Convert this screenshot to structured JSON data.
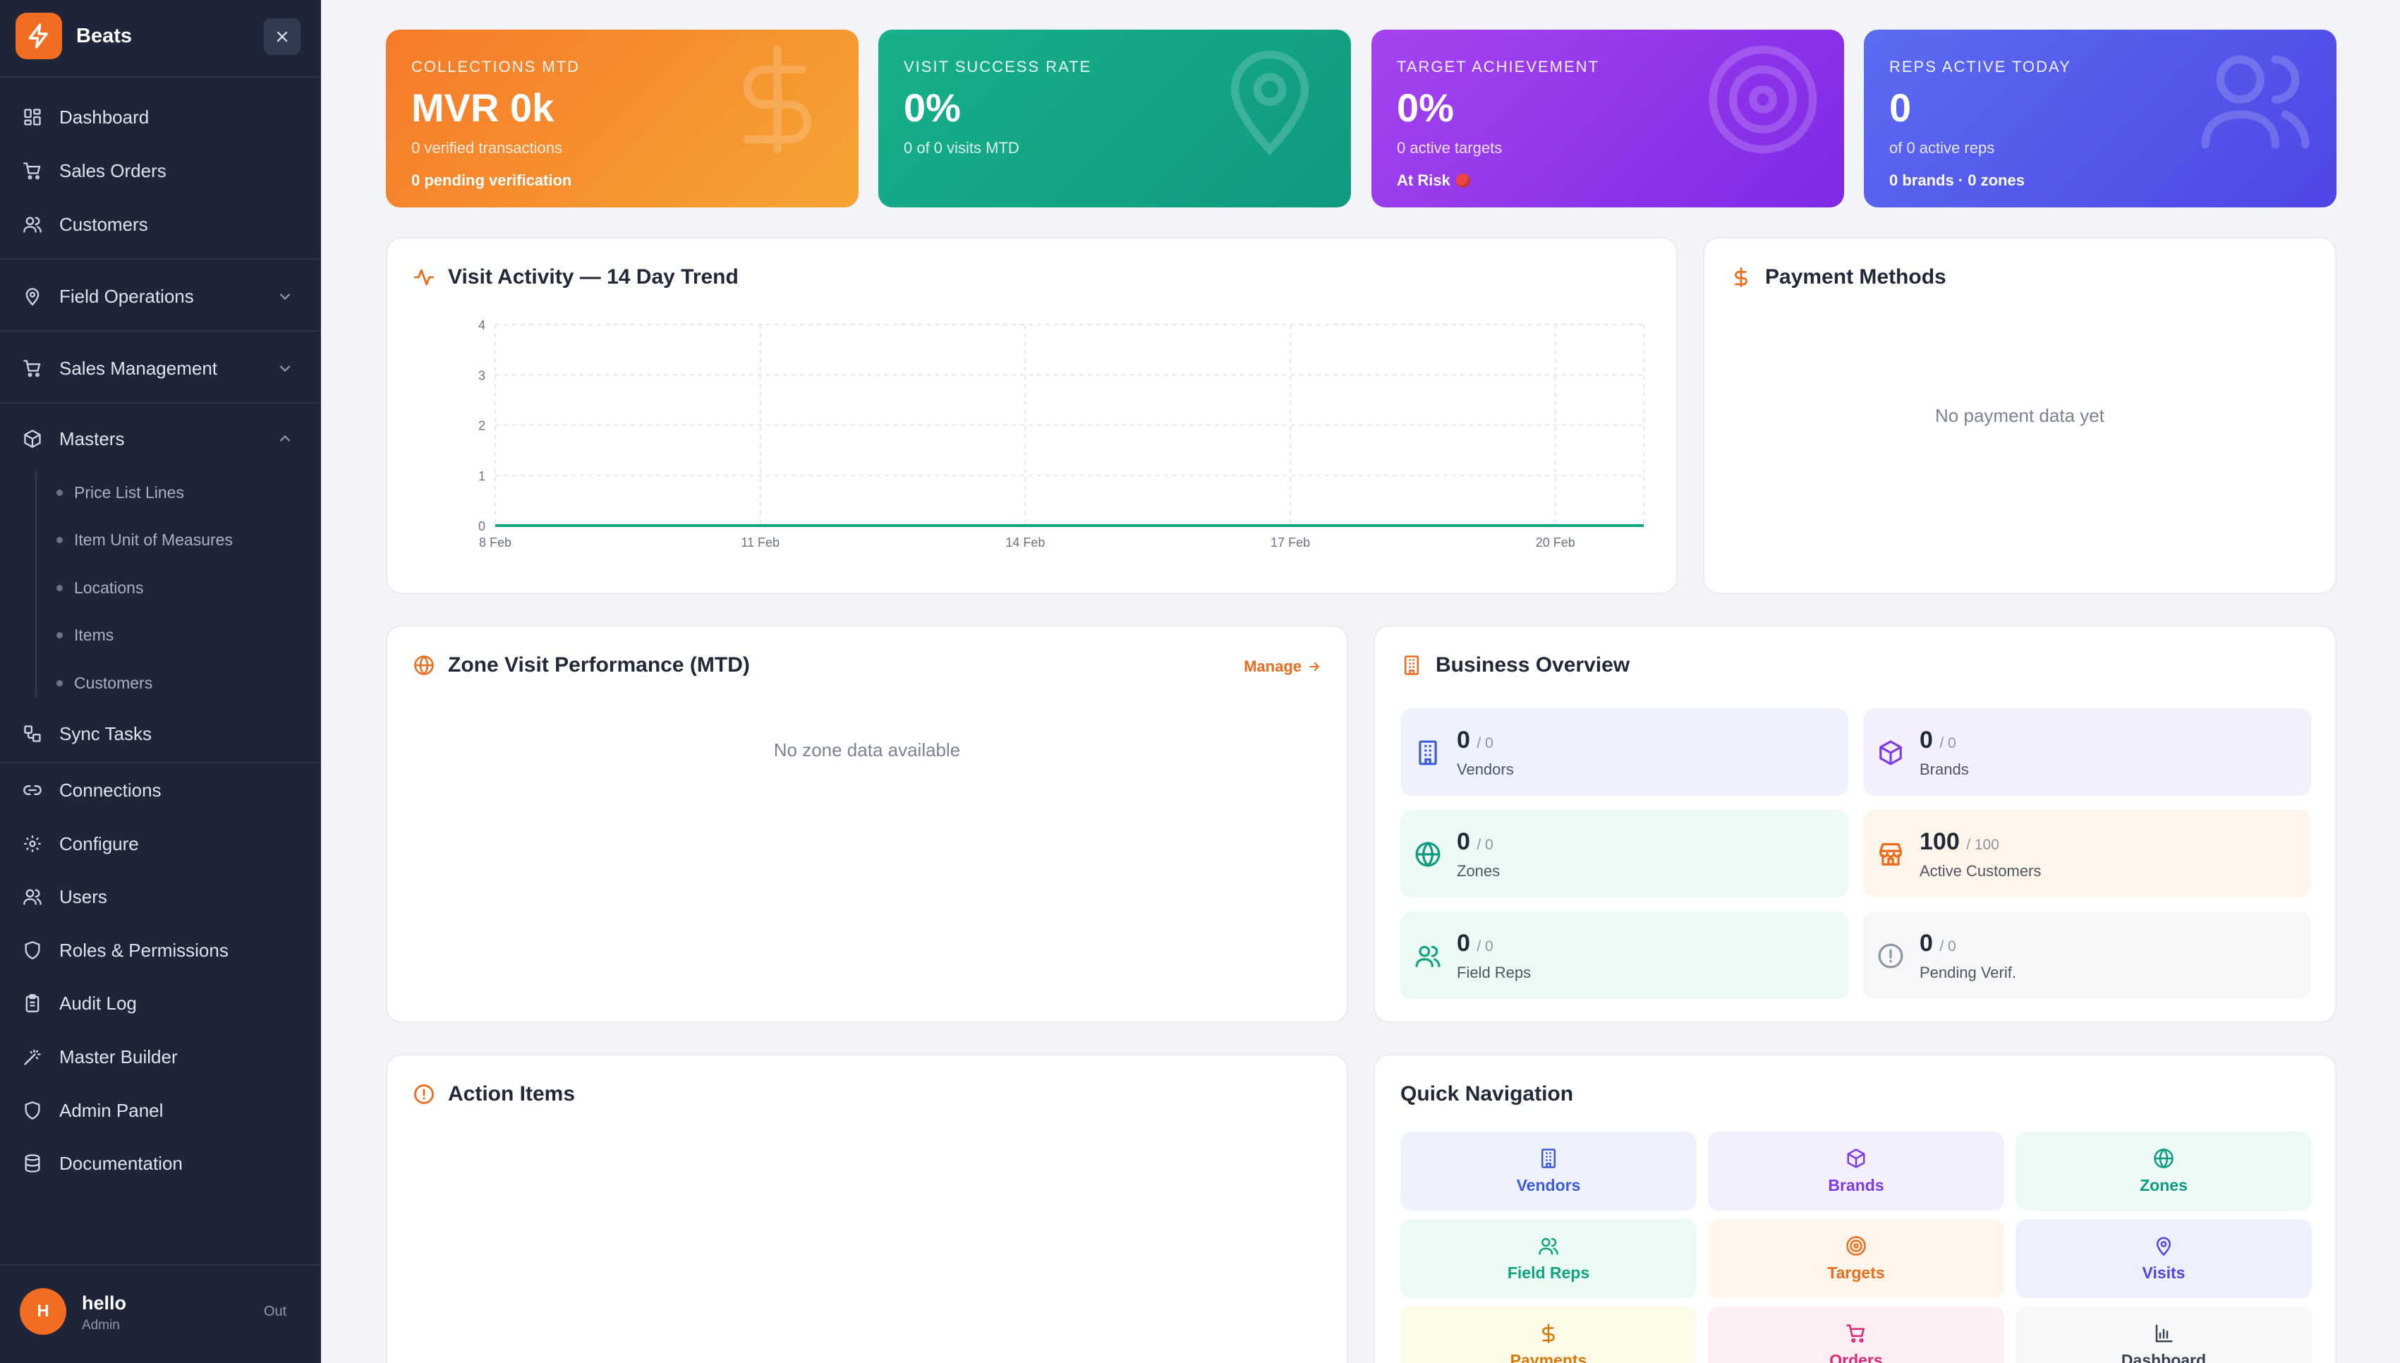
{
  "sidebar": {
    "brand": "Beats",
    "nav": [
      {
        "label": "Dashboard",
        "icon": "grid-icon"
      },
      {
        "label": "Sales Orders",
        "icon": "cart-icon"
      },
      {
        "label": "Customers",
        "icon": "users-icon"
      },
      {
        "label": "Field Operations",
        "icon": "map-pin-icon"
      },
      {
        "label": "Sales Management",
        "icon": "cart-icon"
      },
      {
        "label": "Masters",
        "icon": "box-icon"
      }
    ],
    "masters_sub": [
      "Price List Lines",
      "Item Unit of Measures",
      "Locations",
      "Items",
      "Customers"
    ],
    "nav2": [
      {
        "label": "Sync Tasks",
        "icon": "workflow-icon"
      },
      {
        "label": "Connections",
        "icon": "link-icon"
      },
      {
        "label": "Configure",
        "icon": "gear-icon"
      },
      {
        "label": "Users",
        "icon": "users-icon"
      },
      {
        "label": "Roles & Permissions",
        "icon": "shield-icon"
      },
      {
        "label": "Audit Log",
        "icon": "clipboard-icon"
      },
      {
        "label": "Master Builder",
        "icon": "wand-icon"
      },
      {
        "label": "Admin Panel",
        "icon": "shield-icon"
      },
      {
        "label": "Documentation",
        "icon": "database-icon"
      }
    ],
    "user": {
      "initial": "H",
      "name": "hello",
      "role": "Admin",
      "logout": "Out"
    }
  },
  "kpis": [
    {
      "title": "COLLECTIONS MTD",
      "value": "MVR 0k",
      "sub": "0 verified transactions",
      "foot": "0 pending verification",
      "color": "#f57a2a"
    },
    {
      "title": "VISIT SUCCESS RATE",
      "value": "0%",
      "sub": "0 of 0 visits MTD",
      "foot": "",
      "color": "#17b08a"
    },
    {
      "title": "TARGET ACHIEVEMENT",
      "value": "0%",
      "sub": "0 active targets",
      "foot": "At Risk",
      "color": "#a444f0"
    },
    {
      "title": "REPS ACTIVE TODAY",
      "value": "0",
      "sub": "of 0 active reps",
      "foot": "0 brands · 0 zones",
      "color": "#5b6cf2"
    }
  ],
  "visit_activity": {
    "title": "Visit Activity — 14 Day Trend"
  },
  "chart_data": {
    "type": "line",
    "title": "Visit Activity — 14 Day Trend",
    "x": [
      "8 Feb",
      "9 Feb",
      "10 Feb",
      "11 Feb",
      "12 Feb",
      "13 Feb",
      "14 Feb",
      "15 Feb",
      "16 Feb",
      "17 Feb",
      "18 Feb",
      "19 Feb",
      "20 Feb",
      "21 Feb"
    ],
    "x_ticks": [
      "8 Feb",
      "11 Feb",
      "14 Feb",
      "17 Feb",
      "20 Feb"
    ],
    "series": [
      {
        "values": [
          0,
          0,
          0,
          0,
          0,
          0,
          0,
          0,
          0,
          0,
          0,
          0,
          0,
          0
        ],
        "color": "#10a37f"
      }
    ],
    "y_ticks": [
      0,
      1,
      2,
      3,
      4
    ],
    "ylim": [
      0,
      4
    ],
    "grid": true
  },
  "payment_methods": {
    "title": "Payment Methods",
    "empty": "No payment data yet"
  },
  "zone_perf": {
    "title": "Zone Visit Performance (MTD)",
    "manage": "Manage",
    "empty": "No zone data available"
  },
  "business": {
    "title": "Business Overview",
    "cards": [
      {
        "value": "0",
        "total": "/ 0",
        "label": "Vendors",
        "icon": "building-icon",
        "color": "#3b5bdb"
      },
      {
        "value": "0",
        "total": "/ 0",
        "label": "Brands",
        "icon": "box-icon",
        "color": "#7c3aed"
      },
      {
        "value": "0",
        "total": "/ 0",
        "label": "Zones",
        "icon": "globe-icon",
        "color": "#0f9a80"
      },
      {
        "value": "100",
        "total": "/ 100",
        "label": "Active Customers",
        "icon": "store-icon",
        "color": "#ea6c1c"
      },
      {
        "value": "0",
        "total": "/ 0",
        "label": "Field Reps",
        "icon": "users-icon",
        "color": "#10a37f"
      },
      {
        "value": "0",
        "total": "/ 0",
        "label": "Pending Verif.",
        "icon": "alert-circle-icon",
        "color": "#8d94a2"
      }
    ]
  },
  "action_items": {
    "title": "Action Items"
  },
  "quick_nav": {
    "title": "Quick Navigation",
    "items": [
      {
        "label": "Vendors",
        "icon": "building-icon",
        "color": "#3b5bdb"
      },
      {
        "label": "Brands",
        "icon": "box-icon",
        "color": "#7c3aed"
      },
      {
        "label": "Zones",
        "icon": "globe-icon",
        "color": "#0f9a80"
      },
      {
        "label": "Field Reps",
        "icon": "users-icon",
        "color": "#10a37f"
      },
      {
        "label": "Targets",
        "icon": "target-icon",
        "color": "#ea6c1c"
      },
      {
        "label": "Visits",
        "icon": "map-pin-icon",
        "color": "#4f46e5"
      },
      {
        "label": "Payments",
        "icon": "dollar-icon",
        "color": "#d97706"
      },
      {
        "label": "Orders",
        "icon": "cart-icon",
        "color": "#db2777"
      },
      {
        "label": "Dashboard",
        "icon": "bar-chart-icon",
        "color": "#374151"
      }
    ]
  }
}
